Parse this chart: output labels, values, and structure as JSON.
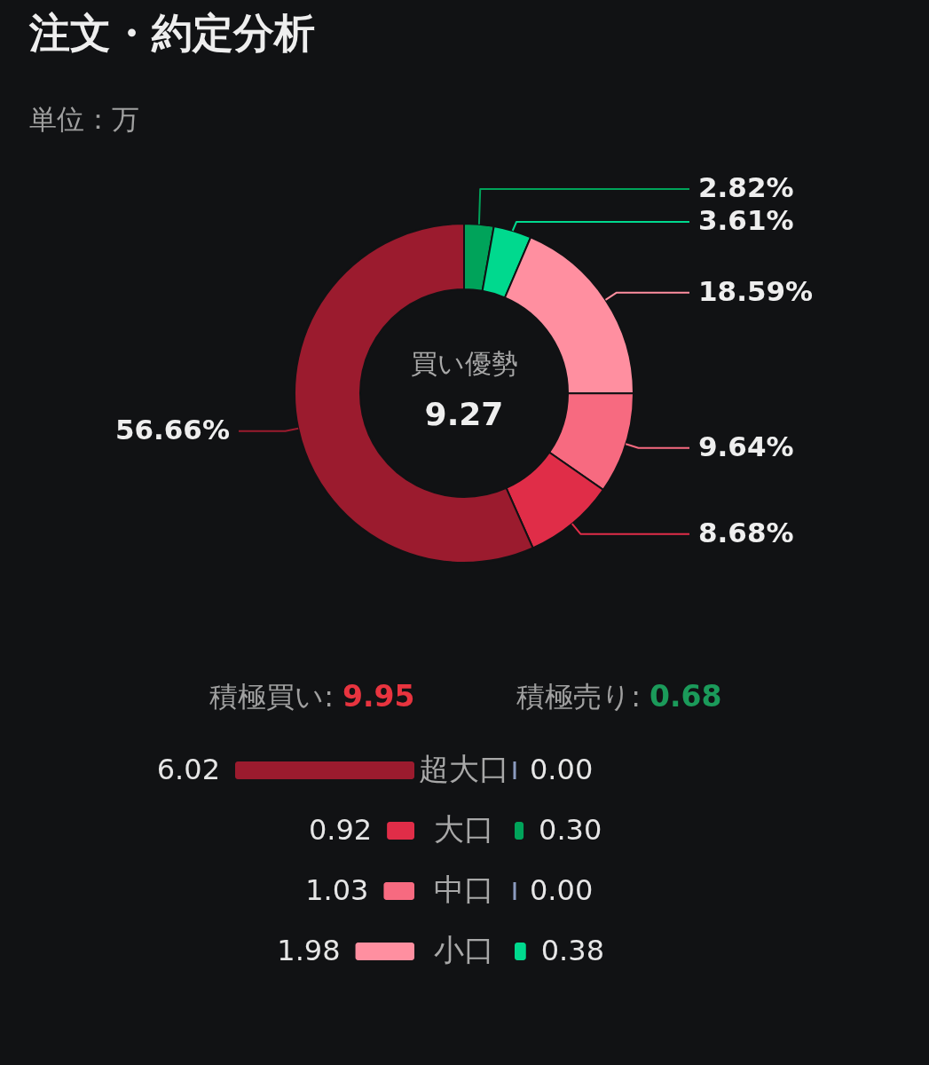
{
  "chart_data": [
    {
      "type": "donut",
      "title": "注文・約定分析",
      "subtitle": "単位：万",
      "categories": [
        null,
        null,
        null,
        null,
        null,
        null
      ],
      "values": [
        2.82,
        3.61,
        18.59,
        9.64,
        8.68,
        56.66
      ],
      "colors": [
        "#00a35a",
        "#00d98e",
        "#ff8fa0",
        "#f76a80",
        "#e02d48",
        "#9b1b2e"
      ],
      "value_labels": [
        "2.82%",
        "3.61%",
        "18.59%",
        "9.64%",
        "8.68%",
        "56.66%"
      ],
      "annotations": [
        "買い優勢",
        "9.27"
      ]
    },
    {
      "type": "bar",
      "orientation": "horizontal",
      "categories": [
        "超大口",
        "大口",
        "中口",
        "小口"
      ],
      "series": [
        {
          "name": "積極買い:",
          "colors": [
            "#9b1b2e",
            "#e02d48",
            "#f76a80",
            "#ff8fa0"
          ],
          "values": [
            6.02,
            0.92,
            1.03,
            1.98
          ],
          "value_labels": [
            "6.02",
            "0.92",
            "1.03",
            "1.98"
          ]
        }
      ],
      "annotations": [
        "9.95"
      ]
    },
    {
      "type": "bar",
      "orientation": "horizontal",
      "series": [
        {
          "name": "積極売り:",
          "colors": [
            "#8c9bbf",
            "#00a35a",
            "#8c9bbf",
            "#00d98e"
          ],
          "values": [
            0,
            0.3,
            0,
            0.38
          ],
          "value_labels": [
            "0.00",
            "0.30",
            "0.00",
            "0.38"
          ]
        }
      ],
      "annotations": [
        "0.68"
      ]
    }
  ]
}
